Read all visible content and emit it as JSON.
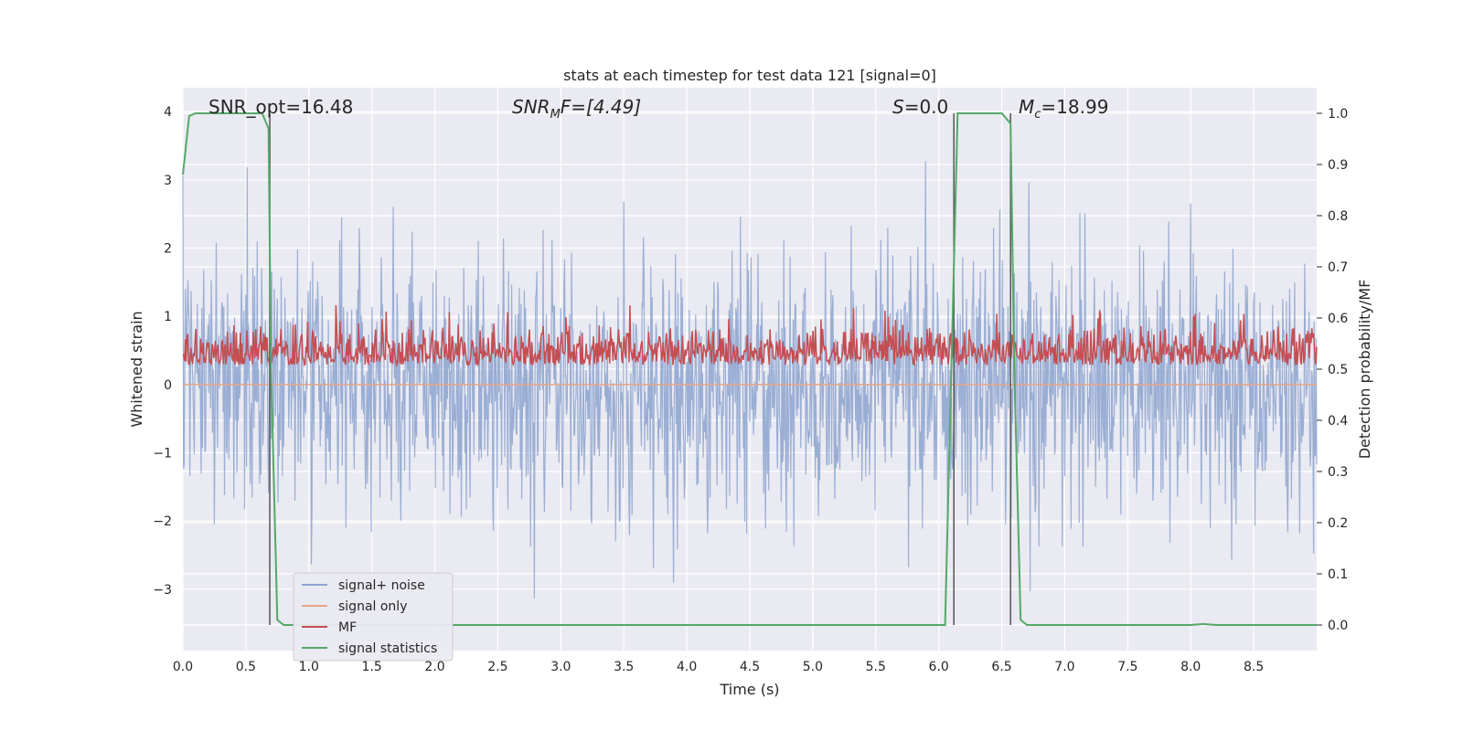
{
  "chart_data": {
    "type": "line",
    "title": "stats at each timestep for test data 121 [signal=0]",
    "xlabel": "Time (s)",
    "ylabel_left": "Whitened strain",
    "ylabel_right": "Detection probability/MF",
    "xlim": [
      0.0,
      9.0
    ],
    "ylim_left": [
      -3.9,
      4.35
    ],
    "ylim_right": [
      -0.05,
      1.05
    ],
    "x_ticks": [
      "0.0",
      "0.5",
      "1.0",
      "1.5",
      "2.0",
      "2.5",
      "3.0",
      "3.5",
      "4.0",
      "4.5",
      "5.0",
      "5.5",
      "6.0",
      "6.5",
      "7.0",
      "7.5",
      "8.0",
      "8.5"
    ],
    "y_ticks_left": [
      "−3",
      "−2",
      "−1",
      "0",
      "1",
      "2",
      "3",
      "4"
    ],
    "y_ticks_right": [
      "0.0",
      "0.1",
      "0.2",
      "0.3",
      "0.4",
      "0.5",
      "0.6",
      "0.7",
      "0.8",
      "0.9",
      "1.0"
    ],
    "grid": true,
    "legend_position": "lower-left",
    "colors": {
      "signal_noise": "#8ca3cf",
      "signal_only": "#e8a687",
      "mf": "#c44e52",
      "signal_statistics": "#55a868",
      "background": "#eaeaf2",
      "grid": "#ffffff"
    },
    "annotations": [
      {
        "text": "SNR_opt=16.48",
        "x": 0.2,
        "y": 4.1
      },
      {
        "text": "SNR_MF=[4.49]",
        "x": 2.6,
        "y": 4.1
      },
      {
        "text": "S=0.0",
        "x": 5.6,
        "y": 4.1
      },
      {
        "text": "M_c=18.99",
        "x": 6.6,
        "y": 4.1
      }
    ],
    "series": [
      {
        "name": "signal+ noise",
        "axis": "left",
        "description": "whitened noisy strain, roughly in range -3.5 to 4"
      },
      {
        "name": "signal only",
        "axis": "left",
        "values": 0
      },
      {
        "name": "MF",
        "axis": "right",
        "baseline": 0.52,
        "range": [
          0.5,
          0.63
        ]
      },
      {
        "name": "signal statistics",
        "axis": "right",
        "x": [
          0.0,
          0.05,
          0.1,
          0.2,
          0.3,
          0.4,
          0.5,
          0.6,
          0.63,
          0.68,
          0.7,
          0.75,
          0.8,
          0.9,
          1.0,
          2.0,
          3.0,
          4.0,
          5.0,
          6.0,
          6.05,
          6.12,
          6.15,
          6.2,
          6.3,
          6.4,
          6.5,
          6.57,
          6.6,
          6.65,
          6.7,
          7.0,
          8.0,
          8.1,
          8.2,
          9.0
        ],
        "y": [
          0.88,
          0.995,
          1.0,
          1.0,
          1.0,
          1.0,
          1.0,
          1.0,
          1.0,
          0.97,
          0.5,
          0.01,
          0.0,
          0.0,
          0.0,
          0.0,
          0.0,
          0.0,
          0.0,
          0.0,
          0.0,
          0.7,
          1.0,
          1.0,
          1.0,
          1.0,
          1.0,
          0.98,
          0.5,
          0.01,
          0.0,
          0.0,
          0.0,
          0.002,
          0.0,
          0.0
        ]
      }
    ],
    "vertical_markers": [
      0.69,
      6.12,
      6.57
    ]
  },
  "legend": {
    "items": [
      {
        "label": "signal+ noise",
        "color": "#8ca3cf"
      },
      {
        "label": "signal only",
        "color": "#e8a687"
      },
      {
        "label": "MF",
        "color": "#c44e52"
      },
      {
        "label": "signal statistics",
        "color": "#55a868"
      }
    ]
  }
}
